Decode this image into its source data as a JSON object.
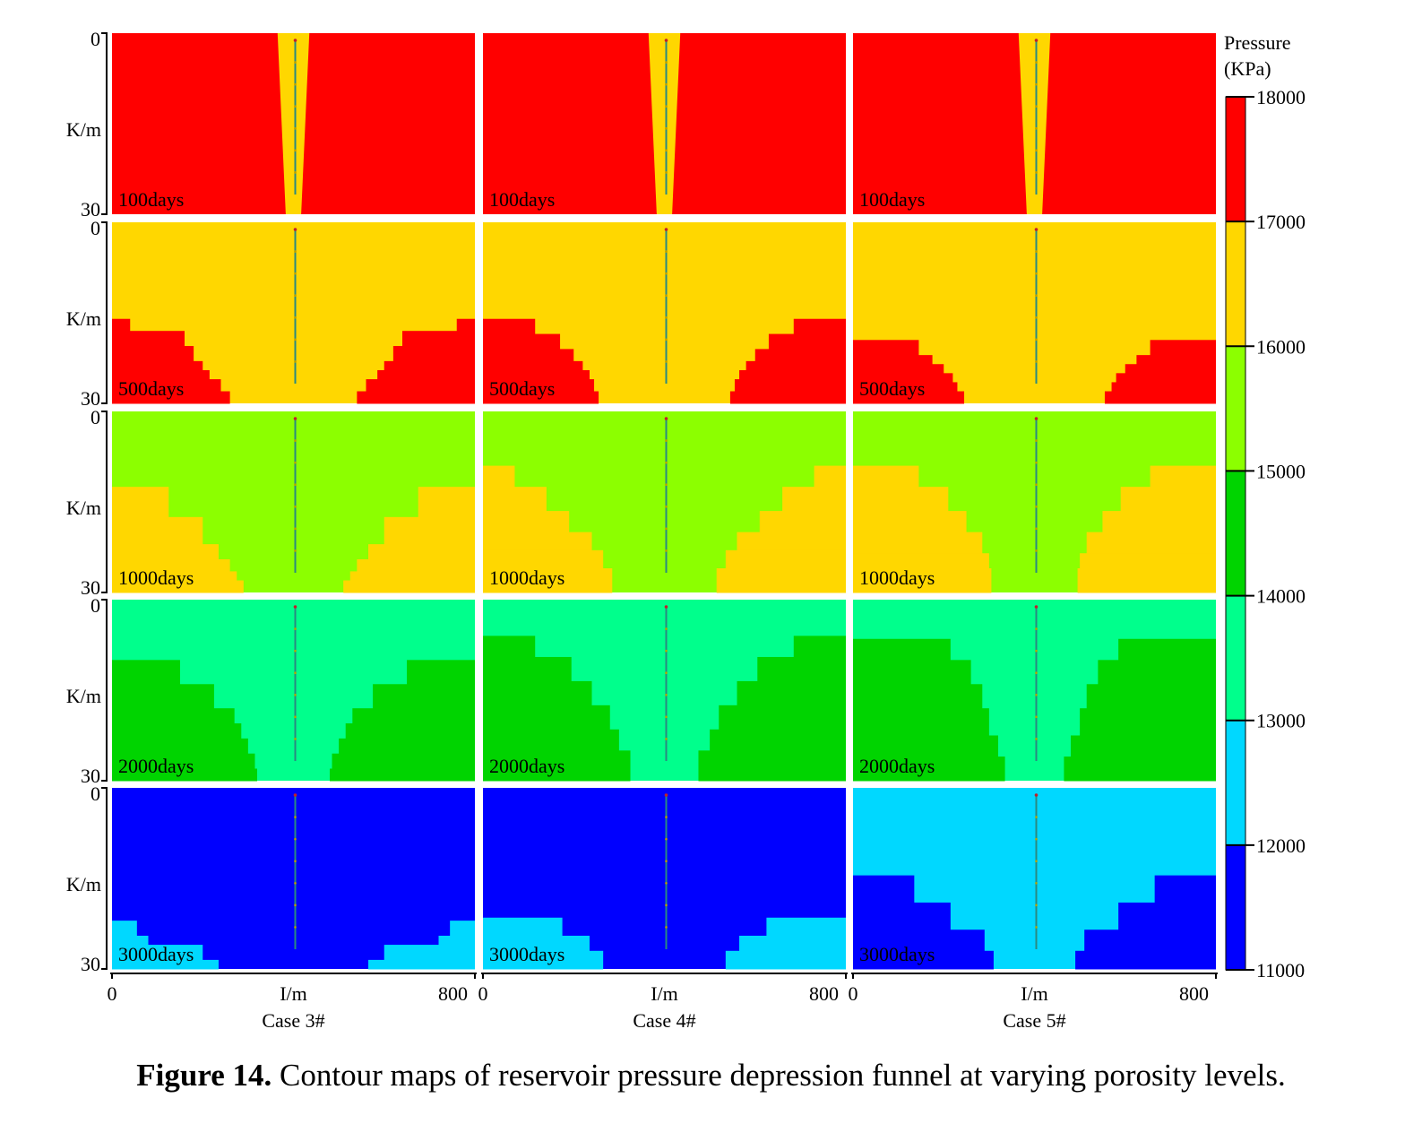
{
  "caption": {
    "label": "Figure 14.",
    "text": "Contour maps of reservoir pressure depression funnel at varying porosity levels."
  },
  "chart_data": {
    "type": "heatmap",
    "title": "",
    "cases": [
      "Case 3#",
      "Case 4#",
      "Case 5#"
    ],
    "times": [
      "100days",
      "500days",
      "1000days",
      "2000days",
      "3000days"
    ],
    "xlabel": "I/m",
    "ylabel": "K/m",
    "xlim": [
      0,
      800
    ],
    "ylim": [
      0,
      30
    ],
    "x_ticks": [
      "0",
      "800"
    ],
    "y_ticks": [
      "0",
      "30"
    ],
    "colorbar": {
      "title_line1": "Pressure",
      "title_line2": "(KPa)",
      "ticks": [
        18000,
        17000,
        16000,
        15000,
        14000,
        13000,
        12000,
        11000
      ],
      "tick_labels": [
        "18000",
        "17000",
        "16000",
        "15000",
        "14000",
        "13000",
        "12000",
        "11000"
      ],
      "bands": [
        {
          "from": 17000,
          "to": 18000,
          "color": "#ff0000"
        },
        {
          "from": 16000,
          "to": 17000,
          "color": "#ffd700"
        },
        {
          "from": 15000,
          "to": 16000,
          "color": "#8cff00"
        },
        {
          "from": 14000,
          "to": 15000,
          "color": "#00d400"
        },
        {
          "from": 13000,
          "to": 14000,
          "color": "#00ff8c"
        },
        {
          "from": 12000,
          "to": 13000,
          "color": "#00d8ff"
        },
        {
          "from": 11000,
          "to": 12000,
          "color": "#0000ff"
        }
      ]
    },
    "well_x": 400,
    "panels": [
      [
        {
          "background": "#ff0000",
          "funnel": {
            "color": "#ffd700",
            "top_halfwidth": 35,
            "bottom_halfwidth": 17
          }
        },
        {
          "background": "#ffd700",
          "zone": {
            "color": "#ff0000",
            "depths": [
              16,
              18,
              20.5,
              23,
              24.5,
              26,
              28,
              30
            ],
            "inner_x": [
              40,
              160,
              180,
              200,
              215,
              240,
              260,
              275
            ]
          }
        },
        {
          "background": "#8cff00",
          "zone": {
            "color": "#ffd700",
            "depths": [
              8.5,
              12.5,
              17.5,
              22,
              24.5,
              26.5,
              28,
              30
            ],
            "inner_x": [
              0,
              125,
              200,
              235,
              260,
              275,
              290,
              290
            ]
          }
        },
        {
          "background": "#00ff8c",
          "zone": {
            "color": "#00d400",
            "depths": [
              10,
              14,
              18,
              20.5,
              23,
              25.5,
              28,
              30
            ],
            "inner_x": [
              150,
              225,
              270,
              285,
              300,
              315,
              320,
              320
            ]
          }
        },
        {
          "background": "#0000ff",
          "zone": {
            "color": "#00d8ff",
            "depths": [
              22,
              24.5,
              26,
              28.5,
              30
            ],
            "inner_x": [
              55,
              80,
              200,
              235,
              240
            ]
          }
        }
      ],
      [
        {
          "background": "#ff0000",
          "funnel": {
            "color": "#ffd700",
            "top_halfwidth": 35,
            "bottom_halfwidth": 17
          }
        },
        {
          "background": "#ffd700",
          "zone": {
            "color": "#ff0000",
            "depths": [
              16,
              18.5,
              21,
              23,
              24.5,
              26,
              28,
              30
            ],
            "inner_x": [
              115,
              170,
              200,
              220,
              235,
              245,
              255,
              260
            ]
          }
        },
        {
          "background": "#8cff00",
          "zone": {
            "color": "#ffd700",
            "depths": [
              5,
              9,
              12.5,
              16.5,
              20,
              23,
              26,
              30
            ],
            "inner_x": [
              0,
              70,
              140,
              190,
              240,
              265,
              285,
              300
            ]
          }
        },
        {
          "background": "#00ff8c",
          "zone": {
            "color": "#00d400",
            "depths": [
              2.5,
              6,
              9.5,
              13.5,
              17.5,
              21.5,
              25,
              30
            ],
            "inner_x": [
              0,
              115,
              195,
              240,
              280,
              300,
              325,
              330
            ]
          }
        },
        {
          "background": "#0000ff",
          "zone": {
            "color": "#00d8ff",
            "depths": [
              17.5,
              21.5,
              24.5,
              27,
              30
            ],
            "inner_x": [
              0,
              175,
              235,
              265,
              290
            ]
          }
        }
      ],
      [
        {
          "background": "#ff0000",
          "funnel": {
            "color": "#ffd700",
            "top_halfwidth": 35,
            "bottom_halfwidth": 17
          }
        },
        {
          "background": "#ffd700",
          "zone": {
            "color": "#ff0000",
            "depths": [
              16,
              19.5,
              22,
              23.5,
              25,
              26.5,
              28,
              30
            ],
            "inner_x": [
              0,
              145,
              175,
              200,
              220,
              230,
              245,
              255
            ]
          }
        },
        {
          "background": "#8cff00",
          "zone": {
            "color": "#ffd700",
            "depths": [
              5,
              9,
              12.5,
              16.5,
              20,
              23.5,
              26,
              30
            ],
            "inner_x": [
              0,
              145,
              210,
              250,
              285,
              300,
              305,
              310
            ]
          }
        },
        {
          "background": "#00ff8c",
          "zone": {
            "color": "#00d400",
            "depths": [
              2.5,
              6.5,
              10,
              14,
              18,
              22.5,
              26,
              30
            ],
            "inner_x": [
              0,
              215,
              260,
              285,
              300,
              320,
              335,
              350
            ]
          }
        },
        {
          "background": "#00d8ff",
          "zone": {
            "color": "#0000ff",
            "depths": [
              9.5,
              14.5,
              19,
              23.5,
              27,
              30
            ],
            "inner_x": [
              0,
              135,
              215,
              290,
              310,
              320
            ]
          }
        }
      ]
    ]
  }
}
